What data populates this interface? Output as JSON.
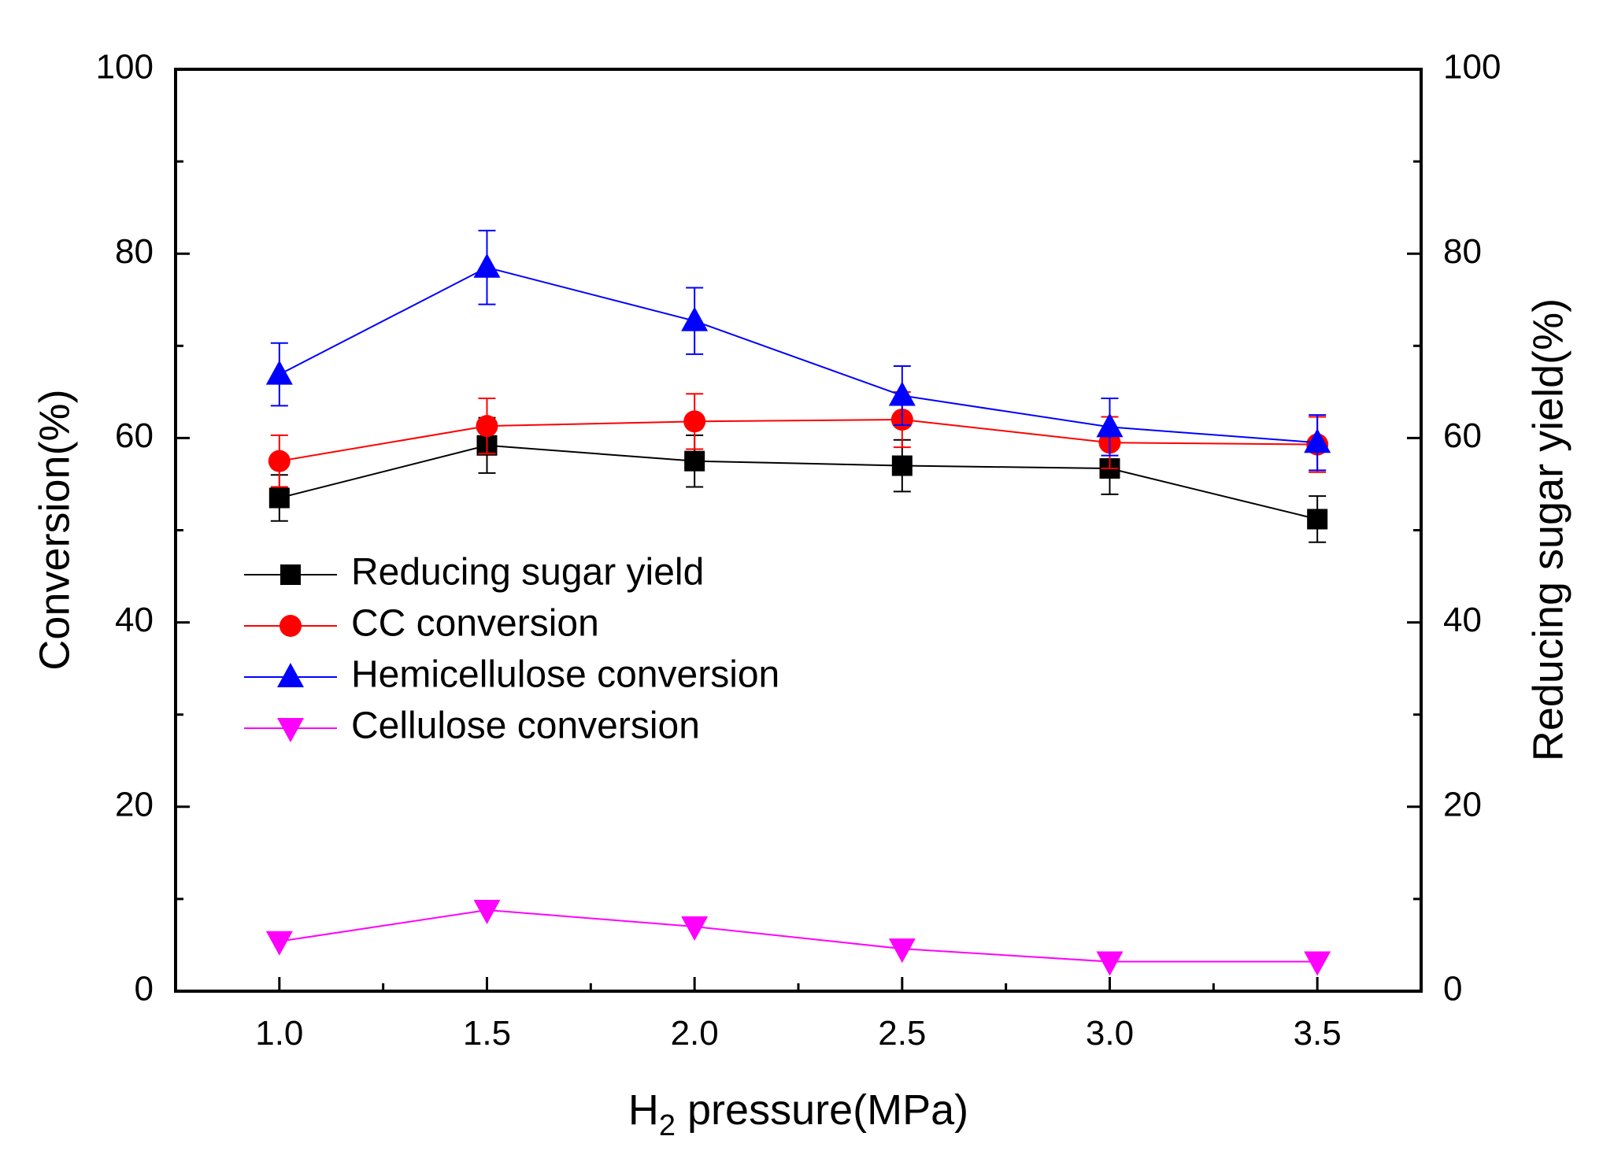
{
  "chart_data": {
    "type": "line",
    "xlabel": {
      "main": "H",
      "sub": "2",
      "rest": " pressure(MPa)"
    },
    "ylabel": "Conversion(%)",
    "y2label": "Reducing sugar yield(%)",
    "xlim": [
      0.75,
      3.75
    ],
    "ylim": [
      0,
      100
    ],
    "y2lim": [
      0,
      100
    ],
    "x": [
      1.0,
      1.5,
      2.0,
      2.5,
      3.0,
      3.5
    ],
    "x_tick_labels": [
      "1.0",
      "1.5",
      "2.0",
      "2.5",
      "3.0",
      "3.5"
    ],
    "y_tick_labels": [
      "0",
      "20",
      "40",
      "60",
      "80",
      "100"
    ],
    "y2_tick_labels": [
      "0",
      "20",
      "40",
      "60",
      "80",
      "100"
    ],
    "grid": false,
    "legend_position": "center-left",
    "series": [
      {
        "name": "Reducing sugar yield",
        "color": "#000000",
        "marker": "square",
        "values": [
          53.5,
          59.2,
          57.5,
          57.0,
          56.7,
          51.2
        ],
        "errors": [
          2.5,
          3.0,
          2.8,
          2.8,
          2.8,
          2.5
        ]
      },
      {
        "name": "CC conversion",
        "color": "#ff0000",
        "marker": "circle",
        "values": [
          57.5,
          61.3,
          61.8,
          62.0,
          59.5,
          59.3
        ],
        "errors": [
          2.8,
          3.0,
          3.0,
          3.0,
          2.8,
          3.0
        ]
      },
      {
        "name": "Hemicellulose conversion",
        "color": "#0000ff",
        "marker": "triangle-up",
        "values": [
          66.9,
          78.5,
          72.7,
          64.6,
          61.2,
          59.5
        ],
        "errors": [
          3.4,
          4.0,
          3.6,
          3.2,
          3.1,
          3.0
        ]
      },
      {
        "name": "Cellulose conversion",
        "color": "#ff00ff",
        "marker": "triangle-down",
        "values": [
          5.4,
          8.8,
          7.0,
          4.6,
          3.2,
          3.2
        ],
        "errors": [
          0,
          0,
          0,
          0,
          0,
          0
        ]
      }
    ]
  }
}
